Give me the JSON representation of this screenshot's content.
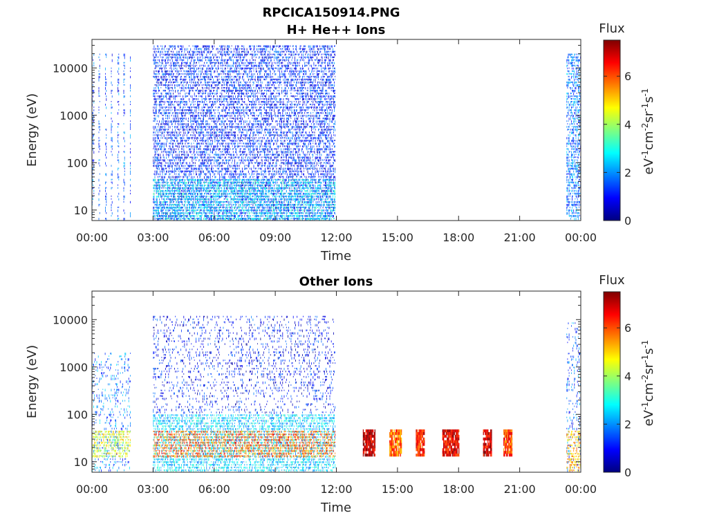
{
  "figure": {
    "filename_title": "RPCICA150914.PNG"
  },
  "colorbar": {
    "stops": [
      "#00007f",
      "#0000ff",
      "#007fff",
      "#00ffff",
      "#7fff7f",
      "#ffff00",
      "#ff7f00",
      "#ff0000",
      "#7f0000"
    ]
  },
  "chart_data": [
    {
      "type": "heatmap",
      "title": "H+ He++ Ions",
      "xlabel": "Time",
      "ylabel": "Energy (eV)",
      "x_ticks": [
        "00:00",
        "03:00",
        "06:00",
        "09:00",
        "12:00",
        "15:00",
        "18:00",
        "21:00",
        "00:00"
      ],
      "x_range_hours": [
        0,
        24
      ],
      "y_scale": "log",
      "y_range": [
        6,
        40000
      ],
      "y_ticks": [
        {
          "value": 10,
          "label": "10"
        },
        {
          "value": 100,
          "label": "100"
        },
        {
          "value": 1000,
          "label": "1000"
        },
        {
          "value": 10000,
          "label": "10000"
        }
      ],
      "colorbar": {
        "title": "Flux",
        "label": "eV-1cm-2sr-1s-1",
        "range": [
          0,
          7.5
        ],
        "ticks": [
          "0",
          "2",
          "4",
          "6"
        ]
      },
      "bands": [
        {
          "t_start": 0.0,
          "t_end": 1.9,
          "e_low": 6,
          "e_high": 20000,
          "mean_flux": 1.5,
          "pattern": "striped"
        },
        {
          "t_start": 3.0,
          "t_end": 11.95,
          "e_low": 6,
          "e_high": 30000,
          "mean_flux": 1.2,
          "pattern": "dense"
        },
        {
          "t_start": 3.0,
          "t_end": 11.95,
          "e_low": 6,
          "e_high": 45,
          "mean_flux": 2.6,
          "pattern": "dense"
        },
        {
          "t_start": 23.3,
          "t_end": 24.0,
          "e_low": 6,
          "e_high": 20000,
          "mean_flux": 1.8,
          "pattern": "dense"
        }
      ]
    },
    {
      "type": "heatmap",
      "title": "Other Ions",
      "xlabel": "Time",
      "ylabel": "Energy (eV)",
      "x_ticks": [
        "00:00",
        "03:00",
        "06:00",
        "09:00",
        "12:00",
        "15:00",
        "18:00",
        "21:00",
        "00:00"
      ],
      "x_range_hours": [
        0,
        24
      ],
      "y_scale": "log",
      "y_range": [
        6,
        40000
      ],
      "y_ticks": [
        {
          "value": 10,
          "label": "10"
        },
        {
          "value": 100,
          "label": "100"
        },
        {
          "value": 1000,
          "label": "1000"
        },
        {
          "value": 10000,
          "label": "10000"
        }
      ],
      "colorbar": {
        "title": "Flux",
        "label": "eV-1cm-2sr-1s-1",
        "range": [
          0,
          7.5
        ],
        "ticks": [
          "0",
          "2",
          "4",
          "6"
        ]
      },
      "bands": [
        {
          "t_start": 0.0,
          "t_end": 1.9,
          "e_low": 6,
          "e_high": 2000,
          "mean_flux": 1.8,
          "pattern": "sparse"
        },
        {
          "t_start": 0.0,
          "t_end": 1.9,
          "e_low": 12,
          "e_high": 45,
          "mean_flux": 4.5,
          "pattern": "dense"
        },
        {
          "t_start": 3.0,
          "t_end": 11.95,
          "e_low": 100,
          "e_high": 12000,
          "mean_flux": 1.0,
          "pattern": "sparse"
        },
        {
          "t_start": 3.0,
          "t_end": 11.95,
          "e_low": 6,
          "e_high": 100,
          "mean_flux": 2.5,
          "pattern": "dense"
        },
        {
          "t_start": 3.0,
          "t_end": 11.95,
          "e_low": 12,
          "e_high": 45,
          "mean_flux": 5.8,
          "pattern": "dense"
        },
        {
          "t_start": 13.3,
          "t_end": 13.9,
          "e_low": 13,
          "e_high": 48,
          "mean_flux": 6.8,
          "pattern": "block"
        },
        {
          "t_start": 14.6,
          "t_end": 15.2,
          "e_low": 13,
          "e_high": 48,
          "mean_flux": 5.6,
          "pattern": "block"
        },
        {
          "t_start": 15.9,
          "t_end": 16.3,
          "e_low": 13,
          "e_high": 48,
          "mean_flux": 6.2,
          "pattern": "block"
        },
        {
          "t_start": 17.2,
          "t_end": 18.0,
          "e_low": 13,
          "e_high": 48,
          "mean_flux": 6.5,
          "pattern": "block"
        },
        {
          "t_start": 19.2,
          "t_end": 19.6,
          "e_low": 13,
          "e_high": 48,
          "mean_flux": 6.7,
          "pattern": "block"
        },
        {
          "t_start": 20.2,
          "t_end": 20.6,
          "e_low": 13,
          "e_high": 48,
          "mean_flux": 5.9,
          "pattern": "block"
        },
        {
          "t_start": 23.3,
          "t_end": 24.0,
          "e_low": 6,
          "e_high": 10000,
          "mean_flux": 1.6,
          "pattern": "sparse"
        },
        {
          "t_start": 23.3,
          "t_end": 24.0,
          "e_low": 6,
          "e_high": 45,
          "mean_flux": 5.2,
          "pattern": "dense"
        }
      ]
    }
  ]
}
